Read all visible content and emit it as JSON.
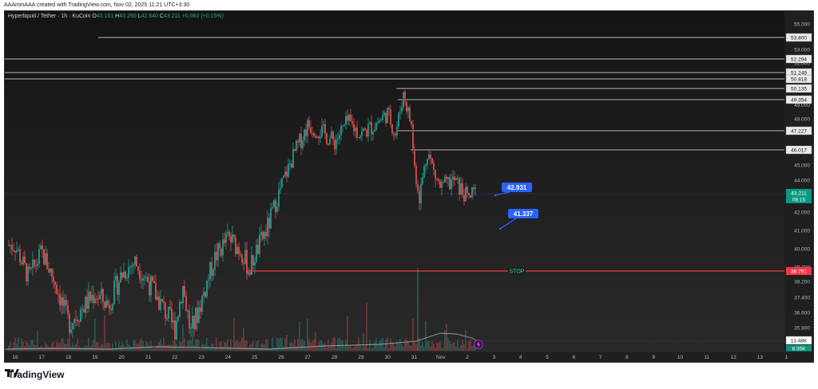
{
  "credit": "AAAminAAA created with TradingView.com, Nov 02, 2025 11:21 UTC+3:30",
  "legend": {
    "symbol": "Hyperliquid / Tether · 1h · KuCoin",
    "o_label": "O",
    "o": "43.161",
    "h_label": "H",
    "h": "43.260",
    "l_label": "L",
    "l": "42.640",
    "c_label": "C",
    "c": "43.211",
    "change": "+0.063 (+0.15%)"
  },
  "footer": {
    "logo_text": "TradingView",
    "logo_mark": "TV"
  },
  "colors": {
    "bg": "#1f1f1f",
    "up": "#26a69a",
    "down": "#ef5350",
    "level_line": "#d1d4dc",
    "stop": "#f23645",
    "callout": "#2962ff",
    "last_price": "#089981",
    "volume_ma": "#b2b5be"
  },
  "chart_data": {
    "type": "candlestick",
    "title": "Hyperliquid / Tether · 1h · KuCoin",
    "xlabel": "",
    "ylabel": "",
    "ylim": [
      35.5,
      55.5
    ],
    "x_ticks": [
      "16",
      "17",
      "18",
      "19",
      "20",
      "21",
      "22",
      "23",
      "24",
      "25",
      "26",
      "27",
      "28",
      "29",
      "30",
      "31",
      "Nov",
      "2",
      "3",
      "4",
      "5",
      "6",
      "7",
      "8",
      "9",
      "10",
      "11",
      "12",
      "13",
      "1"
    ],
    "y_ticks": [
      "55.000",
      "53.000",
      "52.000",
      "51.000",
      "49.000",
      "48.000",
      "45.000",
      "44.000",
      "42.000",
      "41.000",
      "40.000",
      "39.000",
      "38.200",
      "37.400",
      "36.600",
      "35.900"
    ],
    "ohlc_last": {
      "open": 43.161,
      "high": 43.26,
      "low": 42.64,
      "close": 43.211,
      "change": 0.063,
      "change_pct": 0.15
    },
    "approx_close_path": [
      {
        "day": "16",
        "price": 40.2
      },
      {
        "day": "16.5",
        "price": 38.4
      },
      {
        "day": "17",
        "price": 39.8
      },
      {
        "day": "17.5",
        "price": 38.2
      },
      {
        "day": "18",
        "price": 36.1
      },
      {
        "day": "18.5",
        "price": 36.8
      },
      {
        "day": "19",
        "price": 37.6
      },
      {
        "day": "19.5",
        "price": 37.0
      },
      {
        "day": "20",
        "price": 38.6
      },
      {
        "day": "20.5",
        "price": 39.3
      },
      {
        "day": "21",
        "price": 38.2
      },
      {
        "day": "21.5",
        "price": 37.0
      },
      {
        "day": "22",
        "price": 35.8
      },
      {
        "day": "22.3",
        "price": 38.0
      },
      {
        "day": "22.6",
        "price": 35.6
      },
      {
        "day": "23",
        "price": 37.2
      },
      {
        "day": "23.5",
        "price": 39.5
      },
      {
        "day": "24",
        "price": 40.6
      },
      {
        "day": "24.5",
        "price": 39.9
      },
      {
        "day": "24.8",
        "price": 38.8
      },
      {
        "day": "25",
        "price": 39.6
      },
      {
        "day": "25.5",
        "price": 41.2
      },
      {
        "day": "26",
        "price": 43.6
      },
      {
        "day": "26.5",
        "price": 45.8
      },
      {
        "day": "27",
        "price": 47.6
      },
      {
        "day": "27.5",
        "price": 47.2
      },
      {
        "day": "28",
        "price": 46.5
      },
      {
        "day": "28.5",
        "price": 47.8
      },
      {
        "day": "29",
        "price": 47.0
      },
      {
        "day": "29.5",
        "price": 47.6
      },
      {
        "day": "30",
        "price": 48.4
      },
      {
        "day": "30.3",
        "price": 47.0
      },
      {
        "day": "30.6",
        "price": 49.8
      },
      {
        "day": "30.9",
        "price": 47.5
      },
      {
        "day": "31",
        "price": 45.0
      },
      {
        "day": "31.2",
        "price": 43.0
      },
      {
        "day": "31.5",
        "price": 46.0
      },
      {
        "day": "31.8",
        "price": 44.2
      },
      {
        "day": "Nov",
        "price": 43.5
      },
      {
        "day": "Nov.5",
        "price": 44.0
      },
      {
        "day": "2",
        "price": 42.9
      },
      {
        "day": "2.3",
        "price": 43.211
      }
    ],
    "horizontal_levels": [
      53.8,
      52.294,
      51.249,
      50.818,
      50.135,
      49.354,
      47.227,
      46.017
    ],
    "stop_level": {
      "price": 38.791,
      "label": "STOP"
    },
    "callouts": [
      {
        "price": 42.931,
        "label": "42.931"
      },
      {
        "price": 41.337,
        "label": "41.337"
      }
    ],
    "last_price": {
      "value": "43.211",
      "countdown": "08:15"
    },
    "volume": {
      "last_label": "13.48K",
      "ma_label": "8.35K"
    }
  },
  "price_axis_labels": {
    "levels": [
      "53.800",
      "52.294",
      "51.249",
      "50.818",
      "50.135",
      "49.354",
      "47.227",
      "46.017"
    ],
    "stop": "38.791",
    "last": "43.211",
    "countdown": "08:15",
    "volume": "13.48K",
    "volume_ma": "8.35K"
  },
  "drawings": {
    "stop_label": "STOP",
    "callout_1": "42.931",
    "callout_2": "41.337"
  }
}
